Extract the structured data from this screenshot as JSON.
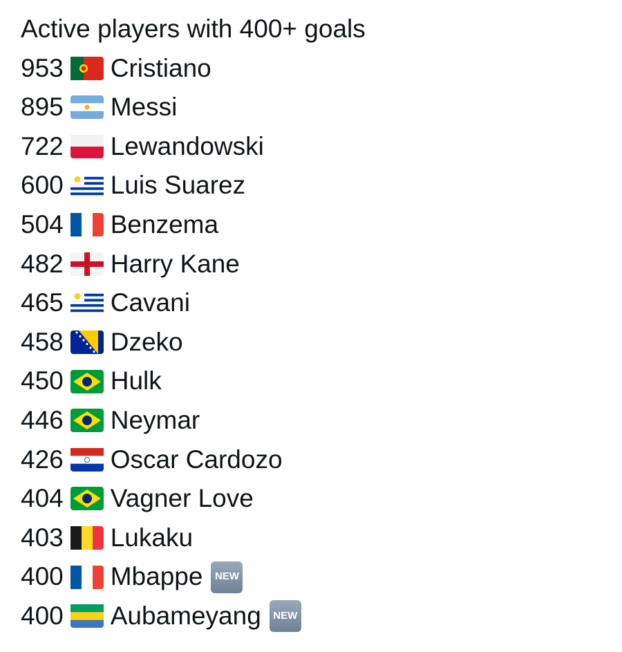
{
  "title": "Active players with 400+ goals",
  "badge_label": "NEW",
  "players": [
    {
      "goals": "953",
      "flag": "portugal",
      "name": "Cristiano",
      "new": false
    },
    {
      "goals": "895",
      "flag": "argentina",
      "name": "Messi",
      "new": false
    },
    {
      "goals": "722",
      "flag": "poland",
      "name": "Lewandowski",
      "new": false
    },
    {
      "goals": "600",
      "flag": "uruguay",
      "name": "Luis Suarez",
      "new": false
    },
    {
      "goals": "504",
      "flag": "france",
      "name": "Benzema",
      "new": false
    },
    {
      "goals": "482",
      "flag": "england",
      "name": "Harry Kane",
      "new": false
    },
    {
      "goals": "465",
      "flag": "uruguay",
      "name": "Cavani",
      "new": false
    },
    {
      "goals": "458",
      "flag": "bosnia",
      "name": "Dzeko",
      "new": false
    },
    {
      "goals": "450",
      "flag": "brazil",
      "name": "Hulk",
      "new": false
    },
    {
      "goals": "446",
      "flag": "brazil",
      "name": "Neymar",
      "new": false
    },
    {
      "goals": "426",
      "flag": "paraguay",
      "name": "Oscar Cardozo",
      "new": false
    },
    {
      "goals": "404",
      "flag": "brazil",
      "name": "Vagner Love",
      "new": false
    },
    {
      "goals": "403",
      "flag": "belgium",
      "name": "Lukaku",
      "new": false
    },
    {
      "goals": "400",
      "flag": "france",
      "name": "Mbappe",
      "new": true
    },
    {
      "goals": "400",
      "flag": "gabon",
      "name": "Aubameyang",
      "new": true
    }
  ]
}
